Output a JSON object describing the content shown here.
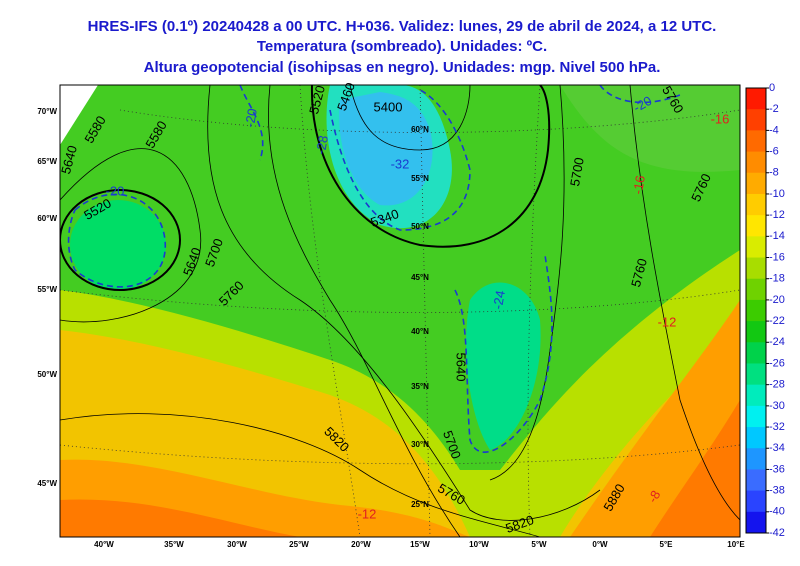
{
  "header": {
    "title_lines": [
      "HRES-IFS (0.1º) 20240428 a 00 UTC. H+036. Validez: lunes, 29 de abril de 2024, a 12 UTC.",
      "Temperatura (sombreado). Unidades: ºC.",
      "Altura geopotencial (isohipsas en negro). Unidades: mgp. Nivel 500 hPa."
    ]
  },
  "map": {
    "left_labels": [
      "70°W",
      "65°W",
      "60°W",
      "55°W",
      "50°W",
      "45°W"
    ],
    "bottom_labels": [
      "40°W",
      "35°W",
      "30°W",
      "25°W",
      "20°W",
      "15°W",
      "10°W",
      "5°W",
      "0°W",
      "5°E",
      "10°E"
    ],
    "lat_labels": [
      "60°N",
      "55°N",
      "50°N",
      "45°N",
      "40°N",
      "35°N",
      "30°N",
      "25°N"
    ],
    "height_labels": [
      "5400",
      "5460",
      "5520",
      "5580",
      "5580",
      "5640",
      "5520",
      "5640",
      "5700",
      "5760",
      "5340",
      "5700",
      "5760",
      "5760",
      "5760",
      "5640",
      "5700",
      "5760",
      "5820",
      "5820",
      "5880"
    ],
    "temperature_labels": [
      "-32",
      "-28",
      "-20",
      "-24",
      "-20",
      "-20",
      "-16",
      "-12",
      "-12",
      "-8",
      "-16"
    ]
  },
  "colorbar": {
    "values": [
      0,
      -2,
      -4,
      -6,
      -8,
      -10,
      -12,
      -14,
      -16,
      -18,
      -20,
      -22,
      -24,
      -26,
      -28,
      -30,
      -32,
      -34,
      -36,
      -38,
      -40,
      -42
    ],
    "colors": [
      "#ff1a00",
      "#ff4000",
      "#ff6a00",
      "#ff8c00",
      "#ffab00",
      "#ffcc00",
      "#ffe600",
      "#d9ec00",
      "#a8dd00",
      "#6fd200",
      "#3ccc00",
      "#12c812",
      "#00d24a",
      "#00e080",
      "#00ecbc",
      "#00f0f0",
      "#00c8ff",
      "#1e96ff",
      "#3a6cff",
      "#2a44ff",
      "#1414ee"
    ]
  }
}
